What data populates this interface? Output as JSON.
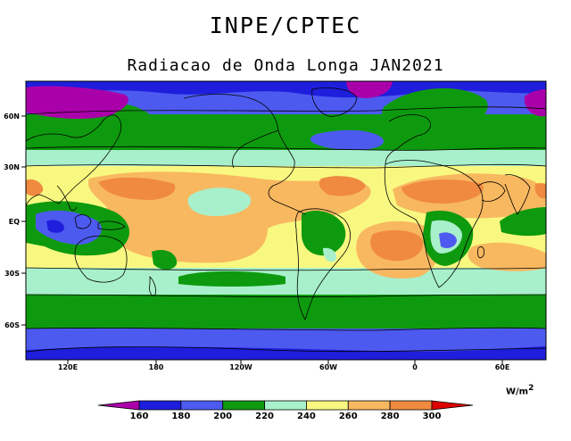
{
  "header": {
    "org": "INPE/CPTEC",
    "title": "Radiacao de Onda Longa JAN2021"
  },
  "axes": {
    "lat_labels": [
      "60N",
      "30N",
      "EQ",
      "30S",
      "60S"
    ],
    "lon_labels": [
      "120E",
      "180",
      "120W",
      "60W",
      "0",
      "60E"
    ]
  },
  "colorbar": {
    "units_base": "W/m",
    "units_exp": "2",
    "levels": [
      "160",
      "180",
      "200",
      "220",
      "240",
      "260",
      "280",
      "300"
    ],
    "colors": [
      "#aa00aa",
      "#1e1edc",
      "#4d5af0",
      "#0e9a0e",
      "#a8f0cc",
      "#f8f880",
      "#f8b860",
      "#f08a40",
      "#dd0000"
    ]
  },
  "map_colors": {
    "below_160": "#aa00aa",
    "c160_180": "#1e1edc",
    "c180_200": "#4d5af0",
    "c200_220": "#0e9a0e",
    "c220_240": "#a8f0cc",
    "c240_260": "#f8f880",
    "c260_280": "#f8b860",
    "c280_300": "#f08a40"
  }
}
